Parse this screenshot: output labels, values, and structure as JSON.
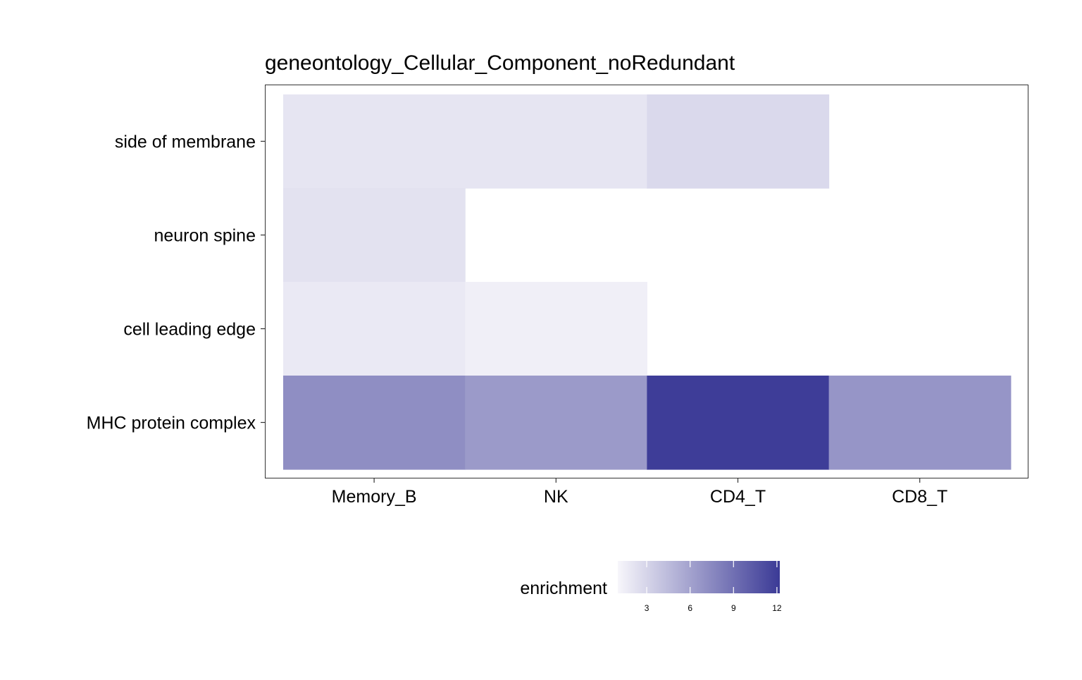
{
  "chart_data": {
    "type": "heatmap",
    "title": "geneontology_Cellular_Component_noRedundant",
    "x_categories": [
      "Memory_B",
      "NK",
      "CD4_T",
      "CD8_T"
    ],
    "y_categories": [
      "side of membrane",
      "neuron spine",
      "cell leading edge",
      "MHC protein complex"
    ],
    "cells": [
      {
        "x": "Memory_B",
        "y": "side of membrane",
        "value": 2.0
      },
      {
        "x": "NK",
        "y": "side of membrane",
        "value": 2.0
      },
      {
        "x": "CD4_T",
        "y": "side of membrane",
        "value": 2.7
      },
      {
        "x": "Memory_B",
        "y": "neuron spine",
        "value": 2.2
      },
      {
        "x": "Memory_B",
        "y": "cell leading edge",
        "value": 1.8
      },
      {
        "x": "NK",
        "y": "cell leading edge",
        "value": 1.4
      },
      {
        "x": "Memory_B",
        "y": "MHC protein complex",
        "value": 7.2
      },
      {
        "x": "NK",
        "y": "MHC protein complex",
        "value": 6.5
      },
      {
        "x": "CD4_T",
        "y": "MHC protein complex",
        "value": 12.0
      },
      {
        "x": "CD8_T",
        "y": "MHC protein complex",
        "value": 6.8
      }
    ],
    "legend": {
      "title": "enrichment",
      "ticks": [
        3,
        6,
        9,
        12
      ],
      "range": [
        1.0,
        12.2
      ],
      "color_low": "#f7f6fb",
      "color_high": "#3b3a96",
      "position": "bottom"
    },
    "grid": false
  }
}
